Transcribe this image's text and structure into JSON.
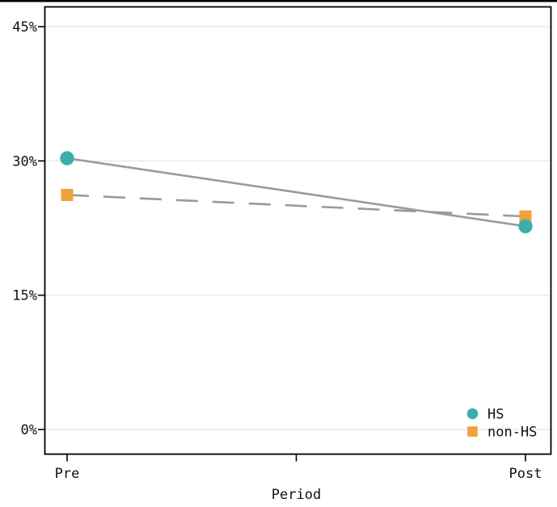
{
  "chart_data": {
    "type": "line",
    "title": "",
    "xlabel": "Period",
    "ylabel": "",
    "categories": [
      "Pre",
      "Post"
    ],
    "series": [
      {
        "name": "HS",
        "values": [
          30.3,
          22.7
        ],
        "marker": "circle",
        "marker_color": "#3cafaa",
        "line_style": "solid",
        "line_color": "#9a9a9a"
      },
      {
        "name": "non-HS",
        "values": [
          26.2,
          23.8
        ],
        "marker": "square",
        "marker_color": "#efa23b",
        "line_style": "dashed",
        "line_color": "#9a9a9a"
      }
    ],
    "yticks": [
      {
        "value": 0,
        "label": "0%"
      },
      {
        "value": 15,
        "label": "15%"
      },
      {
        "value": 30,
        "label": "30%"
      },
      {
        "value": 45,
        "label": "45%"
      }
    ],
    "ylim": [
      0,
      48.5
    ],
    "x_middle_tick_unlabeled": true,
    "grid": true,
    "grid_color": "#e8e8e8",
    "axis_color": "#000000",
    "legend_position": "bottom-right",
    "legend": [
      {
        "label": "HS",
        "marker": "circle",
        "color": "#3cafaa"
      },
      {
        "label": "non-HS",
        "marker": "square",
        "color": "#efa23b"
      }
    ]
  }
}
